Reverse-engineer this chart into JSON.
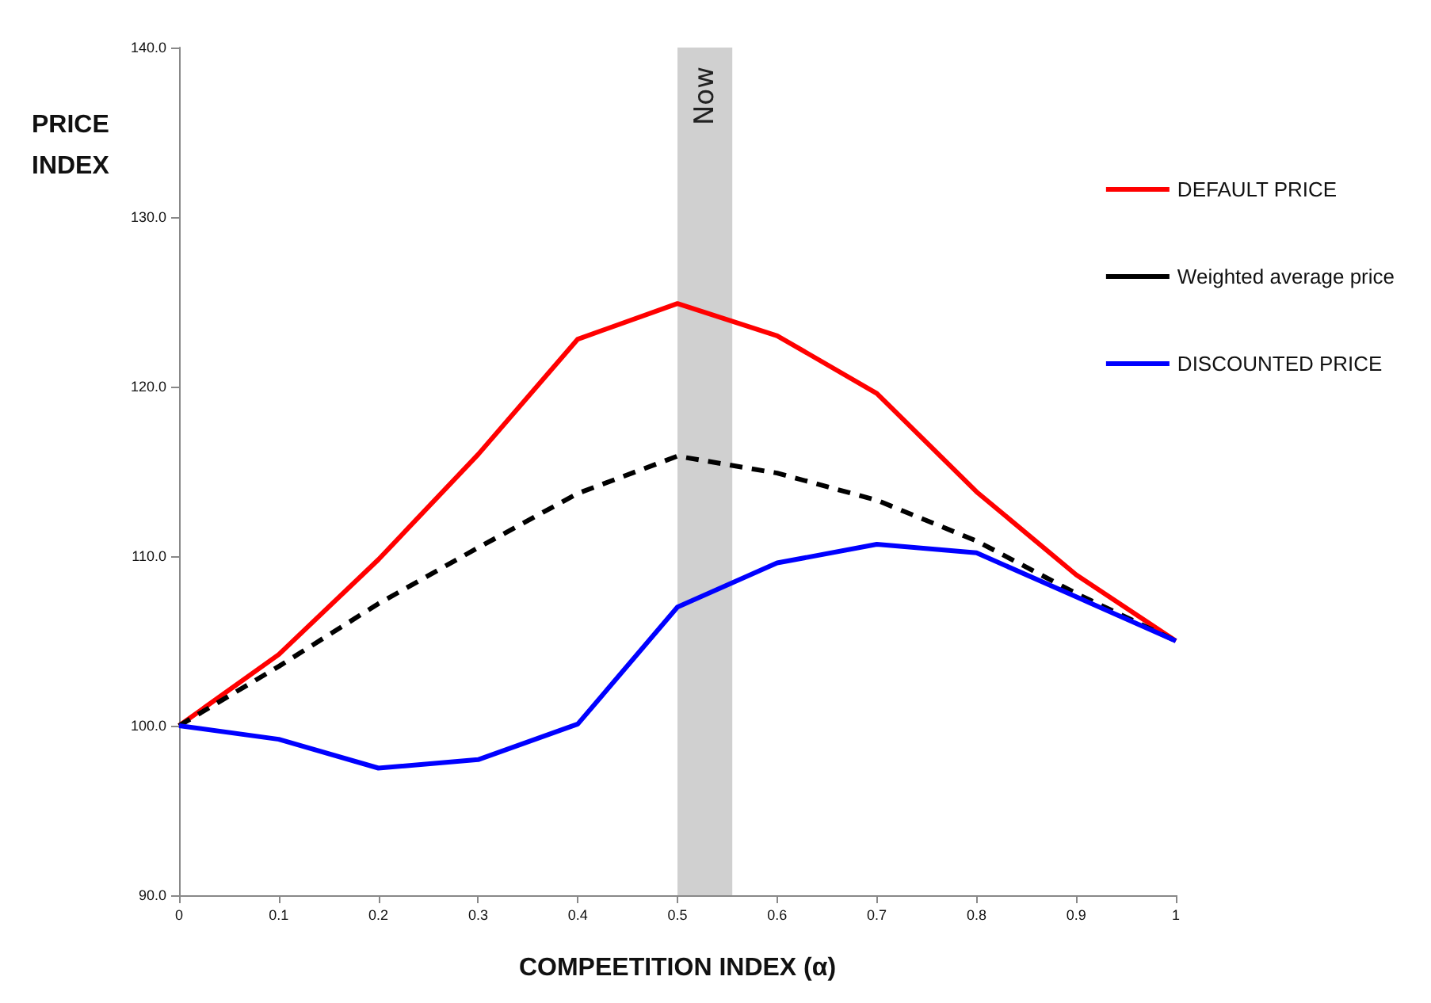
{
  "chart_data": {
    "type": "line",
    "xlabel": "COMPEETITION INDEX (α)",
    "ylabel": "PRICE\nINDEX",
    "x": [
      0,
      0.1,
      0.2,
      0.3,
      0.4,
      0.5,
      0.6,
      0.7,
      0.8,
      0.9,
      1
    ],
    "series": [
      {
        "name": "DEFAULT PRICE",
        "color": "#ff0000",
        "line_style": "solid",
        "values": [
          100,
          104.2,
          109.8,
          116,
          122.8,
          124.9,
          123,
          119.6,
          113.8,
          108.9,
          105
        ]
      },
      {
        "name": "Weighted average price",
        "color": "#000000",
        "line_style": "dashed",
        "values": [
          100,
          103.5,
          107.2,
          110.5,
          113.7,
          115.9,
          114.9,
          113.3,
          110.9,
          107.8,
          105
        ]
      },
      {
        "name": "DISCOUNTED PRICE",
        "color": "#0000ff",
        "line_style": "solid",
        "values": [
          100,
          99.2,
          97.5,
          98,
          100.1,
          107,
          109.6,
          110.7,
          110.2,
          107.6,
          105
        ]
      }
    ],
    "xlim": [
      0,
      1
    ],
    "xticks": [
      0,
      0.1,
      0.2,
      0.3,
      0.4,
      0.5,
      0.6,
      0.7,
      0.8,
      0.9,
      1
    ],
    "ylim": [
      90,
      140
    ],
    "yticks": [
      {
        "value": 90,
        "label": "90.0"
      },
      {
        "value": 100,
        "label": "100.0"
      },
      {
        "value": 110,
        "label": "110.0"
      },
      {
        "value": 120,
        "label": "120.0"
      },
      {
        "value": 130,
        "label": "130.0"
      },
      {
        "value": 140,
        "label": "140.0"
      }
    ],
    "bands": [
      {
        "axis": "x",
        "from": 0.5,
        "to": 0.555,
        "label": "Now",
        "color": "#d0d0d0"
      }
    ],
    "grid": false,
    "legend": "right",
    "marker": "none"
  }
}
